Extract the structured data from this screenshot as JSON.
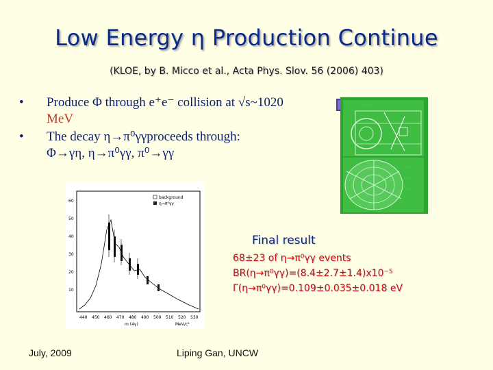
{
  "slide": {
    "title": "Low Energy η Production Continue",
    "subtitle": "(KLOE, by B. Micco et al., Acta Phys. Slov. 56 (2006) 403)"
  },
  "bullets": [
    {
      "text_before": "Produce Φ through e⁺e⁻ collision at √s~1020",
      "text_highlight": "MeV"
    },
    {
      "text_before": "The decay η→π⁰γγproceeds through:",
      "text_line2": "Φ→γη, η→π⁰γγ, π⁰→γγ"
    }
  ],
  "figures": {
    "detector_icon": "kloe-event-display-icon",
    "plot_icon": "invariant-mass-histogram-icon",
    "plot_legend": [
      "background",
      "η→π⁰γγ"
    ],
    "plot_xlabel": "m (4γ)",
    "plot_xunit": "MeV/c²",
    "plot_xticks": [
      "440",
      "450",
      "460",
      "470",
      "480",
      "490",
      "500",
      "510",
      "520",
      "530"
    ],
    "plot_yticks": [
      "60",
      "50",
      "40",
      "30",
      "20",
      "10"
    ]
  },
  "result": {
    "heading": "Final result",
    "events": "68±23 of η→π⁰γγ events",
    "br": "BR(η→π⁰γγ)=(8.4±2.7±1.4)x10⁻⁵",
    "width": "Γ(η→π⁰γγ)=0.109±0.035±0.018 eV"
  },
  "footer": {
    "date": "July, 2009",
    "author": "Liping Gan, UNCW"
  },
  "colors": {
    "background": "#ffffe6",
    "title": "#0b2a86",
    "highlight": "#c0392b",
    "result": "#c21010"
  }
}
